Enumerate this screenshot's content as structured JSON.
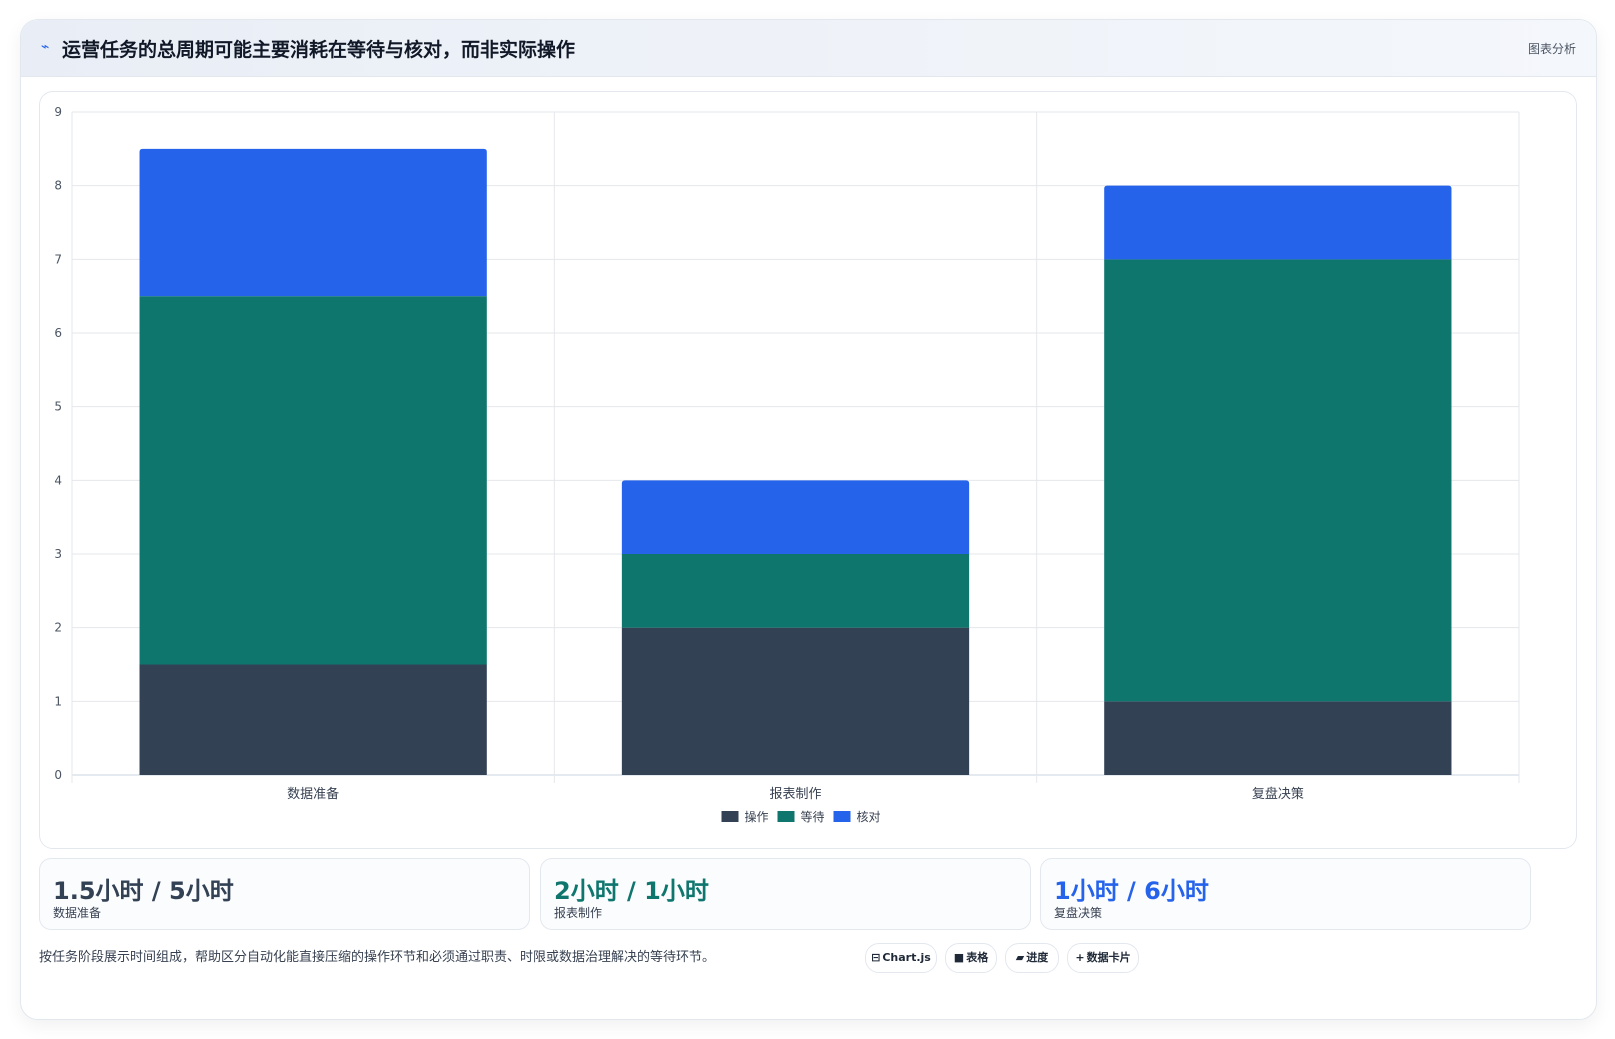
{
  "header": {
    "icon": "trend-line-icon",
    "title": "运营任务的总周期可能主要消耗在等待与核对，而非实际操作",
    "tag": "图表分析"
  },
  "chart_data": {
    "type": "bar",
    "stacked": true,
    "categories": [
      "数据准备",
      "报表制作",
      "复盘决策"
    ],
    "series": [
      {
        "name": "操作",
        "color": "#334155",
        "values": [
          1.5,
          2,
          1
        ]
      },
      {
        "name": "等待",
        "color": "#0f766e",
        "values": [
          5,
          1,
          6
        ]
      },
      {
        "name": "核对",
        "color": "#2563eb",
        "values": [
          2,
          1,
          1
        ]
      }
    ],
    "ylim": [
      0,
      9
    ],
    "yticks": [
      "0",
      "1",
      "2",
      "3",
      "4",
      "5",
      "6",
      "7",
      "8",
      "9"
    ],
    "grid": true,
    "legend_position": "bottom"
  },
  "stats": [
    {
      "value": "1.5小时 / 5小时",
      "label": "数据准备",
      "color": "#334155"
    },
    {
      "value": "2小时 / 1小时",
      "label": "报表制作",
      "color": "#0f766e"
    },
    {
      "value": "1小时 / 6小时",
      "label": "复盘决策",
      "color": "#2563eb"
    }
  ],
  "footnote": "按任务阶段展示时间组成，帮助区分自动化能直接压缩的操作环节和必须通过职责、时限或数据治理解决的等待环节。",
  "chips": [
    {
      "icon": "⊟",
      "label": "Chart.js"
    },
    {
      "icon": "■",
      "label": "表格"
    },
    {
      "icon": "▰",
      "label": "进度"
    },
    {
      "icon": "+",
      "label": "数据卡片"
    }
  ]
}
